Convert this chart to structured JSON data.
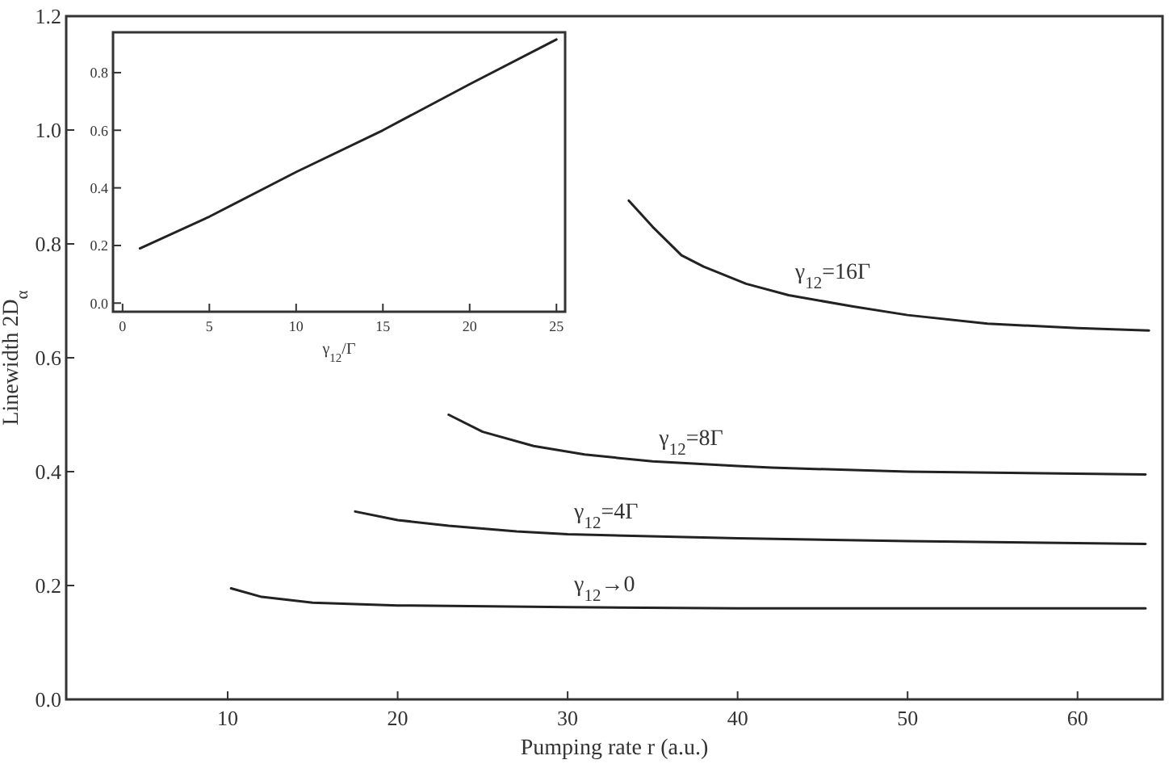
{
  "chart_data": [
    {
      "type": "line",
      "xlabel": "Pumping rate r (a.u.)",
      "ylabel": "Linewidth 2D$_{α}$",
      "xlim": [
        0.5,
        65
      ],
      "ylim": [
        0,
        1.2
      ],
      "xticks": [
        10,
        20,
        30,
        40,
        50,
        60
      ],
      "yticks": [
        {
          "value": 0,
          "label": "0.0"
        },
        {
          "value": 0.2,
          "label": "0.2"
        },
        {
          "value": 0.4,
          "label": "0.4"
        },
        {
          "value": 0.6,
          "label": "0.6"
        },
        {
          "value": 0.8,
          "label": "0.8"
        },
        {
          "value": 1.0,
          "label": "1.0"
        },
        {
          "value": 1.2,
          "label": "1.2"
        }
      ],
      "grid": false,
      "marker": "none",
      "line_style": "solid",
      "series": [
        {
          "name": "γ$_{12}$→0",
          "color": "#222222",
          "x": [
            10.2,
            12,
            15,
            20,
            30,
            40,
            50,
            64
          ],
          "values": [
            0.195,
            0.18,
            0.17,
            0.165,
            0.162,
            0.16,
            0.16,
            0.16
          ]
        },
        {
          "name": "γ$_{12}$=4Γ",
          "color": "#222222",
          "x": [
            17.5,
            20,
            23,
            27,
            30,
            40,
            50,
            64
          ],
          "values": [
            0.33,
            0.315,
            0.305,
            0.295,
            0.29,
            0.283,
            0.278,
            0.273
          ]
        },
        {
          "name": "γ$_{12}$=8Γ",
          "color": "#222222",
          "x": [
            23,
            25,
            28,
            31,
            35,
            40,
            42,
            50,
            64
          ],
          "values": [
            0.5,
            0.47,
            0.445,
            0.43,
            0.418,
            0.41,
            0.407,
            0.4,
            0.395
          ]
        },
        {
          "name": "γ$_{12}$=16Γ",
          "color": "#222222",
          "x": [
            33.6,
            35,
            36.7,
            38,
            40.5,
            43,
            46.8,
            50,
            54.7,
            60,
            64.2
          ],
          "values": [
            0.876,
            0.83,
            0.78,
            0.76,
            0.73,
            0.71,
            0.69,
            0.675,
            0.66,
            0.652,
            0.648
          ]
        }
      ]
    },
    {
      "type": "line",
      "xlabel": "γ$_{12}$/Γ",
      "xlim": [
        -0.55,
        25.5
      ],
      "ylim": [
        -0.03,
        0.94
      ],
      "xticks": [
        0,
        5,
        10,
        15,
        20,
        25
      ],
      "yticks": [
        {
          "value": 0,
          "label": "0.0"
        },
        {
          "value": 0.2,
          "label": "0.2"
        },
        {
          "value": 0.4,
          "label": "0.4"
        },
        {
          "value": 0.6,
          "label": "0.6"
        },
        {
          "value": 0.8,
          "label": "0.8"
        }
      ],
      "grid": false,
      "marker": "none",
      "line_style": "solid",
      "series": [
        {
          "color": "#222222",
          "x": [
            1,
            5,
            10,
            15,
            20,
            25
          ],
          "values": [
            0.19,
            0.3,
            0.455,
            0.6,
            0.76,
            0.915
          ]
        }
      ]
    }
  ]
}
